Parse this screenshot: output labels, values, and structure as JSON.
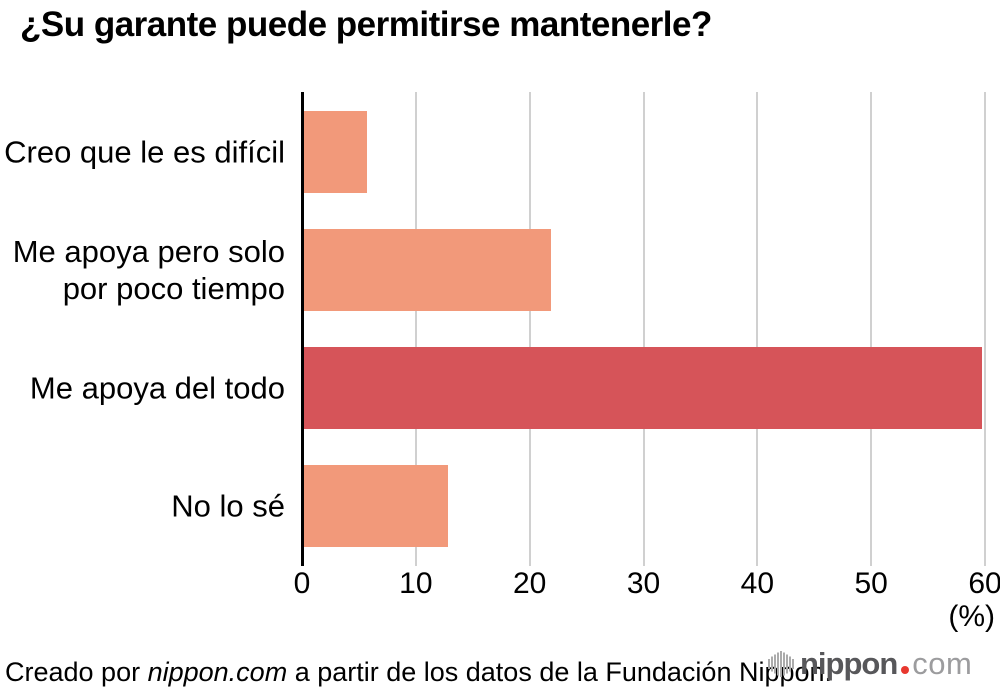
{
  "title": "¿Su garante puede permitirse mantenerle?",
  "chart_data": {
    "type": "bar",
    "orientation": "horizontal",
    "title": "¿Su garante puede permitirse mantenerle?",
    "categories": [
      "Creo que le es difícil",
      "Me apoya pero solo\npor poco tiempo",
      "Me apoya del todo",
      "No lo sé"
    ],
    "values": [
      5.7,
      21.9,
      59.7,
      12.8
    ],
    "bar_colors": [
      "#F2997A",
      "#F2997A",
      "#D65459",
      "#F2997A"
    ],
    "highlight_category": "Me apoya del todo",
    "xlim": [
      0,
      60
    ],
    "xticks": [
      0,
      10,
      20,
      30,
      40,
      50,
      60
    ],
    "xlabel": "(%)",
    "grid": "vertical",
    "gridline_color": "#D0D0D0",
    "axis_color": "#000000",
    "legend": "none"
  },
  "footer": {
    "credit_prefix": "Creado por ",
    "credit_brand": "nippon.com",
    "credit_suffix": " a partir de los datos de la Fundación Nippon.",
    "logo": {
      "icon": "soundwave-bars-icon",
      "icon_color": "#ABABAB",
      "word": "nippon",
      "word_color": "#57575A",
      "dot_color": "#E8382F",
      "tld": "com",
      "tld_color": "#9C9C9E"
    }
  }
}
